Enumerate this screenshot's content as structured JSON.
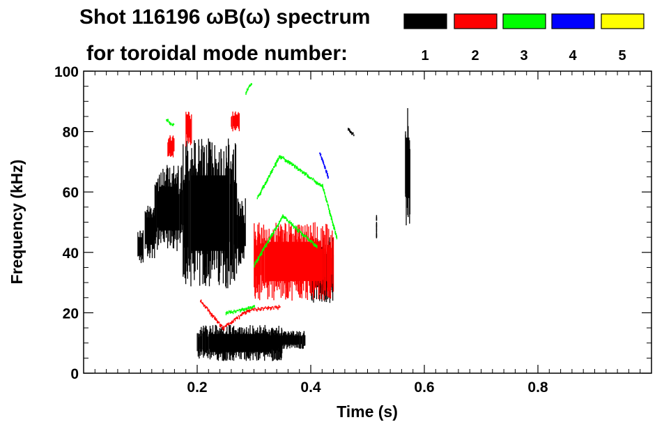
{
  "chart_data": {
    "type": "heatmap",
    "title_line1": "Shot 116196 ωB(ω) spectrum",
    "title_line2": "for toroidal mode number:",
    "xlabel": "Time (s)",
    "ylabel": "Frequency (kHz)",
    "xlim": [
      0.0,
      1.0
    ],
    "ylim": [
      0,
      100
    ],
    "x_ticks": [
      0.2,
      0.4,
      0.6,
      0.8
    ],
    "x_tick_labels": [
      "0.2",
      "0.4",
      "0.6",
      "0.8"
    ],
    "y_ticks": [
      0,
      20,
      40,
      60,
      80,
      100
    ],
    "y_tick_labels": [
      "0",
      "20",
      "40",
      "60",
      "80",
      "100"
    ],
    "legend": [
      {
        "mode": "1",
        "color": "#000000"
      },
      {
        "mode": "2",
        "color": "#ff0000"
      },
      {
        "mode": "3",
        "color": "#00ff00"
      },
      {
        "mode": "4",
        "color": "#0000ff"
      },
      {
        "mode": "5",
        "color": "#ffff00"
      }
    ],
    "series": [
      {
        "name": "n=1",
        "color": "#000000",
        "bands": [
          {
            "kind": "blob",
            "t0": 0.095,
            "t1": 0.105,
            "f0": 36,
            "f1": 48
          },
          {
            "kind": "blob",
            "t0": 0.108,
            "t1": 0.125,
            "f0": 38,
            "f1": 56
          },
          {
            "kind": "blob",
            "t0": 0.125,
            "t1": 0.175,
            "f0": 40,
            "f1": 69
          },
          {
            "kind": "blob",
            "t0": 0.175,
            "t1": 0.27,
            "f0": 28,
            "f1": 78
          },
          {
            "kind": "blob",
            "t0": 0.27,
            "t1": 0.285,
            "f0": 34,
            "f1": 58
          },
          {
            "kind": "blob",
            "t0": 0.2,
            "t1": 0.35,
            "f0": 4,
            "f1": 16
          },
          {
            "kind": "blob",
            "t0": 0.33,
            "t1": 0.39,
            "f0": 8,
            "f1": 14
          },
          {
            "kind": "blob",
            "t0": 0.4,
            "t1": 0.44,
            "f0": 23,
            "f1": 45
          },
          {
            "kind": "line",
            "t0": 0.465,
            "t1": 0.475,
            "f0": 81,
            "f1": 79
          },
          {
            "kind": "blob",
            "t0": 0.566,
            "t1": 0.575,
            "f0": 48,
            "f1": 88
          },
          {
            "kind": "line",
            "t0": 0.515,
            "t1": 0.515,
            "f0": 45,
            "f1": 52
          }
        ]
      },
      {
        "name": "n=2",
        "color": "#ff0000",
        "bands": [
          {
            "kind": "blob",
            "t0": 0.148,
            "t1": 0.16,
            "f0": 71,
            "f1": 79
          },
          {
            "kind": "blob",
            "t0": 0.18,
            "t1": 0.19,
            "f0": 75,
            "f1": 87
          },
          {
            "kind": "line",
            "t0": 0.205,
            "t1": 0.245,
            "f0": 24,
            "f1": 15
          },
          {
            "kind": "line",
            "t0": 0.245,
            "t1": 0.26,
            "f0": 15,
            "f1": 17
          },
          {
            "kind": "line",
            "t0": 0.26,
            "t1": 0.29,
            "f0": 17,
            "f1": 21
          },
          {
            "kind": "line",
            "t0": 0.29,
            "t1": 0.345,
            "f0": 21,
            "f1": 22
          },
          {
            "kind": "blob",
            "t0": 0.3,
            "t1": 0.44,
            "f0": 24,
            "f1": 50
          },
          {
            "kind": "blob",
            "t0": 0.26,
            "t1": 0.275,
            "f0": 80,
            "f1": 87
          }
        ]
      },
      {
        "name": "n=3",
        "color": "#00ff00",
        "bands": [
          {
            "kind": "line",
            "t0": 0.145,
            "t1": 0.158,
            "f0": 84,
            "f1": 82
          },
          {
            "kind": "line",
            "t0": 0.305,
            "t1": 0.345,
            "f0": 58,
            "f1": 72
          },
          {
            "kind": "line",
            "t0": 0.345,
            "t1": 0.42,
            "f0": 72,
            "f1": 62
          },
          {
            "kind": "line",
            "t0": 0.42,
            "t1": 0.445,
            "f0": 62,
            "f1": 45
          },
          {
            "kind": "line",
            "t0": 0.3,
            "t1": 0.35,
            "f0": 36,
            "f1": 52
          },
          {
            "kind": "line",
            "t0": 0.35,
            "t1": 0.41,
            "f0": 52,
            "f1": 42
          },
          {
            "kind": "line",
            "t0": 0.25,
            "t1": 0.3,
            "f0": 20,
            "f1": 22
          },
          {
            "kind": "line",
            "t0": 0.285,
            "t1": 0.295,
            "f0": 93,
            "f1": 96
          }
        ]
      },
      {
        "name": "n=4",
        "color": "#0000ff",
        "bands": [
          {
            "kind": "line",
            "t0": 0.415,
            "t1": 0.43,
            "f0": 73,
            "f1": 65
          }
        ]
      }
    ]
  }
}
